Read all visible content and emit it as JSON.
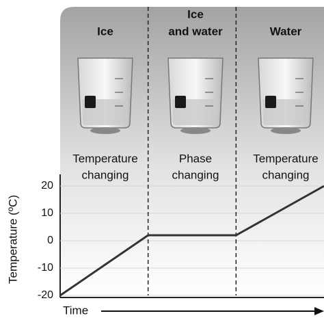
{
  "chart_data": {
    "type": "line",
    "phases": [
      {
        "title": [
          "Ice"
        ],
        "description": [
          "Temperature",
          "changing"
        ]
      },
      {
        "title": [
          "Ice",
          "and water"
        ],
        "description": [
          "Phase",
          "changing"
        ]
      },
      {
        "title": [
          "Water"
        ],
        "description": [
          "Temperature",
          "changing"
        ]
      }
    ],
    "y_label": "Temperature (ºC)",
    "x_label": "Time",
    "x": [
      0,
      1,
      2,
      3
    ],
    "values": [
      -20,
      2,
      2,
      20
    ],
    "xlim": [
      0,
      3
    ],
    "ylim": [
      -20,
      20
    ],
    "yticks": [
      -20,
      -10,
      0,
      10,
      20
    ],
    "grid": true,
    "color": "#333333"
  }
}
